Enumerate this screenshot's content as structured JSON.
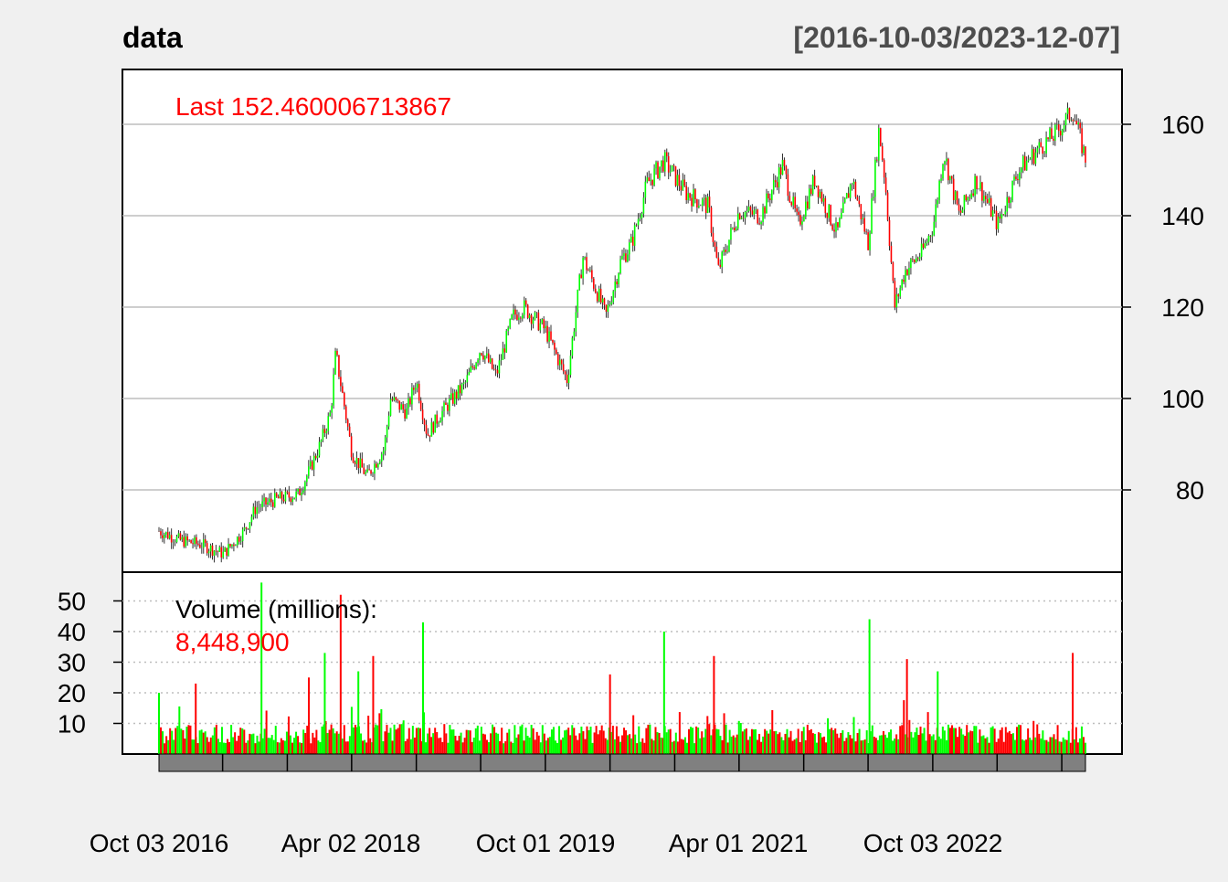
{
  "chart_data": {
    "type": "line",
    "title": "data",
    "date_range": "[2016-10-03/2023-12-07]",
    "last_label": "Last 152.460006713867",
    "price_panel": {
      "yticks": [
        80,
        100,
        120,
        140,
        160
      ],
      "ylim": [
        62,
        172
      ],
      "grid": true,
      "series": [
        {
          "x": [
            "2016-10-03",
            "2016-12-01",
            "2017-02-01",
            "2017-04-03",
            "2017-06-01",
            "2017-07-03",
            "2017-09-01",
            "2017-11-01",
            "2017-12-01",
            "2018-01-02",
            "2018-02-01",
            "2018-02-15",
            "2018-04-02",
            "2018-05-15",
            "2018-07-02",
            "2018-07-20",
            "2018-09-03",
            "2018-10-01",
            "2018-11-01",
            "2018-12-03",
            "2019-01-02",
            "2019-02-15",
            "2019-04-01",
            "2019-05-15",
            "2019-07-01",
            "2019-08-01",
            "2019-10-01",
            "2019-12-02",
            "2020-01-15",
            "2020-03-02",
            "2020-03-20",
            "2020-05-01",
            "2020-06-01",
            "2020-07-15",
            "2020-09-01",
            "2020-11-02",
            "2021-01-04",
            "2021-02-01",
            "2021-04-01",
            "2021-06-01",
            "2021-08-02",
            "2021-09-15",
            "2021-11-01",
            "2022-01-03",
            "2022-02-15",
            "2022-04-01",
            "2022-05-02",
            "2022-05-20",
            "2022-06-15",
            "2022-07-15",
            "2022-09-01",
            "2022-10-03",
            "2022-11-01",
            "2022-12-15",
            "2023-02-01",
            "2023-04-03",
            "2023-06-01",
            "2023-08-01",
            "2023-09-15",
            "2023-11-01",
            "2023-12-07"
          ],
          "values": [
            71,
            69,
            68,
            66,
            71,
            76,
            78,
            79,
            84,
            90,
            97,
            110,
            88,
            83,
            89,
            100,
            97,
            104,
            92,
            96,
            99,
            103,
            111,
            105,
            118,
            120,
            115,
            104,
            131,
            122,
            118,
            130,
            134,
            147,
            152,
            145,
            142,
            128,
            141,
            140,
            151,
            138,
            148,
            136,
            148,
            134,
            159,
            147,
            120,
            128,
            132,
            138,
            154,
            140,
            148,
            138,
            150,
            155,
            158,
            163,
            152.46
          ]
        }
      ]
    },
    "volume_panel": {
      "label": "Volume (millions):",
      "last_volume": "8,448,900",
      "yticks": [
        10,
        20,
        30,
        40,
        50
      ],
      "ylim": [
        0,
        57
      ],
      "spikes": [
        {
          "x": "2016-10-03",
          "value": 20
        },
        {
          "x": "2017-01-15",
          "value": 23
        },
        {
          "x": "2017-07-20",
          "value": 56
        },
        {
          "x": "2017-12-01",
          "value": 25
        },
        {
          "x": "2018-01-15",
          "value": 33
        },
        {
          "x": "2018-03-01",
          "value": 52
        },
        {
          "x": "2018-04-20",
          "value": 27
        },
        {
          "x": "2018-06-01",
          "value": 32
        },
        {
          "x": "2018-10-20",
          "value": 43
        },
        {
          "x": "2020-04-01",
          "value": 26
        },
        {
          "x": "2020-09-01",
          "value": 40
        },
        {
          "x": "2021-01-20",
          "value": 32
        },
        {
          "x": "2022-04-05",
          "value": 44
        },
        {
          "x": "2022-07-20",
          "value": 31
        },
        {
          "x": "2022-10-15",
          "value": 27
        },
        {
          "x": "2023-11-01",
          "value": 33
        }
      ],
      "baseline_volume": 7
    },
    "x_tick_labels": [
      "Oct 03 2016",
      "Apr 02 2018",
      "Oct 01 2019",
      "Apr 01 2021",
      "Oct 03 2022"
    ],
    "x_range": [
      "2016-10-03",
      "2023-12-07"
    ],
    "colors": {
      "up": "#00ff00",
      "down": "#ff0000",
      "last": "#ff0000",
      "grid": "#bdbdbd",
      "axis_bar": "#808080"
    }
  }
}
